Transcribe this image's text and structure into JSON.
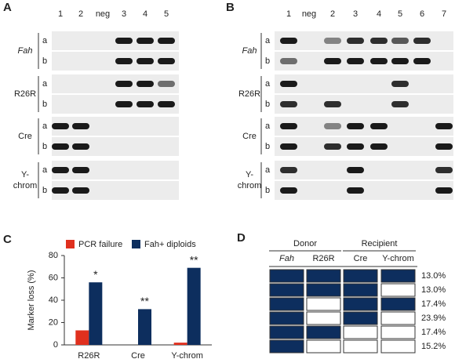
{
  "panel_labels": [
    "A",
    "B",
    "C",
    "D"
  ],
  "gels": [
    {
      "lanes": [
        "1",
        "2",
        "neg",
        "3",
        "4",
        "5"
      ],
      "groups": [
        {
          "name": [
            "Fah"
          ],
          "italic": true,
          "rows": [
            {
              "label": "a",
              "bands": [
                0,
                0,
                0,
                1,
                1,
                1
              ]
            },
            {
              "label": "b",
              "bands": [
                0,
                0,
                0,
                1,
                1,
                1
              ]
            }
          ]
        },
        {
          "name": [
            "R26R"
          ],
          "italic": false,
          "rows": [
            {
              "label": "a",
              "bands": [
                0,
                0,
                0,
                1,
                1,
                0.6
              ]
            },
            {
              "label": "b",
              "bands": [
                0,
                0,
                0,
                1,
                1,
                1
              ]
            }
          ]
        },
        {
          "name": [
            "Cre"
          ],
          "italic": false,
          "rows": [
            {
              "label": "a",
              "bands": [
                1,
                1,
                0,
                0,
                0,
                0
              ]
            },
            {
              "label": "b",
              "bands": [
                1,
                1,
                0,
                0,
                0,
                0
              ]
            }
          ]
        },
        {
          "name": [
            "Y-",
            "chrom"
          ],
          "italic": false,
          "rows": [
            {
              "label": "a",
              "bands": [
                1,
                1,
                0,
                0,
                0,
                0
              ]
            },
            {
              "label": "b",
              "bands": [
                1,
                1,
                0,
                0,
                0,
                0
              ]
            }
          ]
        }
      ]
    },
    {
      "lanes": [
        "1",
        "neg",
        "2",
        "3",
        "4",
        "5",
        "6",
        "7"
      ],
      "groups": [
        {
          "name": [
            "Fah"
          ],
          "italic": true,
          "rows": [
            {
              "label": "a",
              "bands": [
                1,
                0,
                0.5,
                0.9,
                0.9,
                0.7,
                0.9,
                0
              ]
            },
            {
              "label": "b",
              "bands": [
                0.6,
                0,
                1,
                1,
                1,
                1,
                1,
                0
              ]
            }
          ]
        },
        {
          "name": [
            "R26R"
          ],
          "italic": false,
          "rows": [
            {
              "label": "a",
              "bands": [
                1,
                0,
                0,
                0,
                0,
                0.9,
                0,
                0
              ]
            },
            {
              "label": "b",
              "bands": [
                0.9,
                0,
                0.9,
                0,
                0,
                0.9,
                0,
                0
              ]
            }
          ]
        },
        {
          "name": [
            "Cre"
          ],
          "italic": false,
          "rows": [
            {
              "label": "a",
              "bands": [
                1,
                0,
                0.5,
                1,
                1,
                0,
                0,
                1
              ]
            },
            {
              "label": "b",
              "bands": [
                1,
                0,
                0.9,
                1,
                1,
                0,
                0,
                1
              ]
            }
          ]
        },
        {
          "name": [
            "Y-",
            "chrom"
          ],
          "italic": false,
          "rows": [
            {
              "label": "a",
              "bands": [
                0.9,
                0,
                0,
                1,
                0,
                0,
                0,
                0.9
              ]
            },
            {
              "label": "b",
              "bands": [
                1,
                0,
                0,
                1,
                0,
                0,
                0,
                1
              ]
            }
          ]
        }
      ]
    }
  ],
  "chart_data": {
    "type": "bar",
    "categories": [
      "R26R",
      "Cre",
      "Y-chrom"
    ],
    "series": [
      {
        "name": "PCR failure",
        "color": "#e0301e",
        "values": [
          13,
          0,
          2
        ]
      },
      {
        "name": "Fah+ diploids",
        "color": "#0d2e5e",
        "values": [
          56,
          32,
          69
        ]
      }
    ],
    "annotations": [
      "*",
      "**",
      "**"
    ],
    "y_label": "Marker loss (%)",
    "ylim": [
      0,
      80
    ],
    "yticks": [
      0,
      20,
      40,
      60,
      80
    ]
  },
  "table": {
    "groups": [
      "Donor",
      "Recipient"
    ],
    "columns": [
      {
        "text": "Fah",
        "italic": true
      },
      {
        "text": "R26R",
        "italic": false
      },
      {
        "text": "Cre",
        "italic": false
      },
      {
        "text": "Y-chrom",
        "italic": false
      }
    ],
    "fill_color": "#0d2e5e",
    "rows": [
      {
        "cells": [
          true,
          true,
          true,
          true
        ],
        "percent": "13.0%"
      },
      {
        "cells": [
          true,
          true,
          true,
          false
        ],
        "percent": "13.0%"
      },
      {
        "cells": [
          true,
          false,
          true,
          true
        ],
        "percent": "17.4%"
      },
      {
        "cells": [
          true,
          false,
          true,
          false
        ],
        "percent": "23.9%"
      },
      {
        "cells": [
          true,
          true,
          false,
          false
        ],
        "percent": "17.4%"
      },
      {
        "cells": [
          true,
          false,
          false,
          false
        ],
        "percent": "15.2%"
      }
    ]
  }
}
